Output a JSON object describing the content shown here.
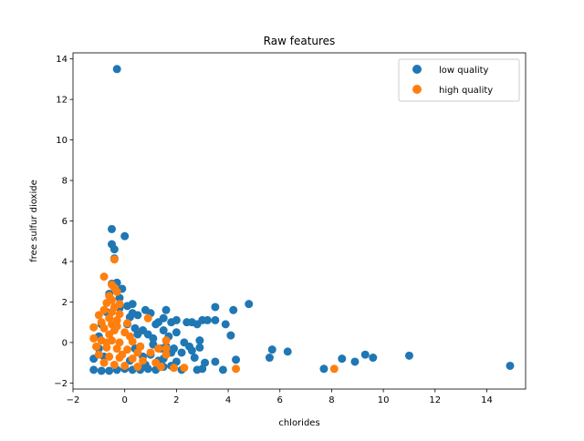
{
  "chart_data": {
    "type": "scatter",
    "title": "Raw features",
    "xlabel": "chlorides",
    "ylabel": "free sulfur dioxide",
    "xlim": [
      -2,
      15.5
    ],
    "ylim": [
      -2.3,
      14.3
    ],
    "xticks": [
      -2,
      0,
      2,
      4,
      6,
      8,
      10,
      12,
      14
    ],
    "yticks": [
      -2,
      0,
      2,
      4,
      6,
      8,
      10,
      12,
      14
    ],
    "xtick_labels": [
      "−2",
      "0",
      "2",
      "4",
      "6",
      "8",
      "10",
      "12",
      "14"
    ],
    "ytick_labels": [
      "−2",
      "0",
      "2",
      "4",
      "6",
      "8",
      "10",
      "12",
      "14"
    ],
    "grid": false,
    "legend_position": "top-right",
    "series": [
      {
        "name": "low quality",
        "color": "#1f77b4",
        "points": [
          [
            -0.3,
            13.5
          ],
          [
            -0.5,
            5.6
          ],
          [
            0.0,
            5.25
          ],
          [
            -0.5,
            4.85
          ],
          [
            -0.4,
            4.6
          ],
          [
            -0.4,
            4.15
          ],
          [
            -0.5,
            2.9
          ],
          [
            -0.3,
            2.95
          ],
          [
            -0.1,
            2.65
          ],
          [
            -0.6,
            2.4
          ],
          [
            0.3,
            1.9
          ],
          [
            0.1,
            1.8
          ],
          [
            -0.2,
            1.7
          ],
          [
            1.6,
            1.6
          ],
          [
            0.8,
            1.6
          ],
          [
            1.0,
            1.45
          ],
          [
            0.5,
            1.35
          ],
          [
            0.2,
            1.25
          ],
          [
            1.3,
            1.0
          ],
          [
            1.8,
            1.0
          ],
          [
            2.0,
            1.1
          ],
          [
            2.6,
            1.0
          ],
          [
            2.8,
            0.9
          ],
          [
            3.0,
            1.1
          ],
          [
            3.2,
            1.1
          ],
          [
            3.5,
            1.1
          ],
          [
            3.9,
            0.9
          ],
          [
            3.5,
            1.75
          ],
          [
            4.2,
            1.6
          ],
          [
            4.8,
            1.9
          ],
          [
            1.5,
            0.6
          ],
          [
            0.7,
            0.6
          ],
          [
            -0.9,
            0.9
          ],
          [
            0.1,
            0.9
          ],
          [
            4.1,
            0.35
          ],
          [
            2.9,
            0.1
          ],
          [
            2.9,
            -0.25
          ],
          [
            1.7,
            0.3
          ],
          [
            1.1,
            0.2
          ],
          [
            0.5,
            0.4
          ],
          [
            2.2,
            -0.5
          ],
          [
            2.5,
            -0.2
          ],
          [
            2.7,
            -0.75
          ],
          [
            3.5,
            -0.95
          ],
          [
            4.3,
            -0.85
          ],
          [
            5.7,
            -0.35
          ],
          [
            6.3,
            -0.45
          ],
          [
            5.6,
            -0.75
          ],
          [
            7.7,
            -1.3
          ],
          [
            8.4,
            -0.8
          ],
          [
            8.9,
            -0.95
          ],
          [
            9.3,
            -0.6
          ],
          [
            9.6,
            -0.75
          ],
          [
            11.0,
            -0.65
          ],
          [
            14.9,
            -1.15
          ],
          [
            -1.2,
            -0.8
          ],
          [
            -1.2,
            -1.35
          ],
          [
            -0.9,
            -1.4
          ],
          [
            -0.6,
            -1.4
          ],
          [
            -0.3,
            -1.35
          ],
          [
            0.0,
            -1.3
          ],
          [
            0.3,
            -1.35
          ],
          [
            0.6,
            -1.35
          ],
          [
            0.9,
            -1.3
          ],
          [
            1.2,
            -1.35
          ],
          [
            1.5,
            -1.2
          ],
          [
            1.8,
            -1.15
          ],
          [
            2.2,
            -1.35
          ],
          [
            2.8,
            -1.35
          ],
          [
            3.0,
            -1.3
          ],
          [
            3.8,
            -1.35
          ],
          [
            1.4,
            -0.3
          ],
          [
            1.0,
            -0.6
          ],
          [
            0.6,
            -0.2
          ],
          [
            1.5,
            -0.8
          ],
          [
            1.3,
            -0.9
          ],
          [
            2.0,
            -0.95
          ],
          [
            1.9,
            -0.3
          ],
          [
            2.3,
            0.0
          ],
          [
            0.9,
            0.4
          ],
          [
            0.4,
            0.7
          ],
          [
            -1.0,
            0.3
          ],
          [
            -1.0,
            -0.3
          ],
          [
            -0.8,
            -0.7
          ],
          [
            0.2,
            -0.9
          ],
          [
            0.7,
            -0.7
          ],
          [
            1.1,
            -0.1
          ],
          [
            1.6,
            -0.2
          ],
          [
            2.6,
            -0.4
          ],
          [
            0.8,
            -1.1
          ],
          [
            1.2,
            0.9
          ],
          [
            1.5,
            1.2
          ],
          [
            0.3,
            1.45
          ],
          [
            -0.7,
            1.5
          ],
          [
            -0.2,
            2.2
          ],
          [
            2.4,
            1.0
          ],
          [
            3.1,
            -1.0
          ],
          [
            2.0,
            0.5
          ],
          [
            1.8,
            -0.5
          ],
          [
            0.4,
            -0.3
          ]
        ]
      },
      {
        "name": "high quality",
        "color": "#ff7f0e",
        "points": [
          [
            -0.4,
            4.1
          ],
          [
            -0.8,
            3.25
          ],
          [
            -0.5,
            2.85
          ],
          [
            -0.4,
            2.7
          ],
          [
            -0.3,
            2.5
          ],
          [
            -0.6,
            2.3
          ],
          [
            -0.5,
            2.1
          ],
          [
            -0.7,
            1.95
          ],
          [
            -0.2,
            1.9
          ],
          [
            -0.4,
            1.75
          ],
          [
            -0.8,
            1.6
          ],
          [
            -0.5,
            1.5
          ],
          [
            -1.0,
            1.35
          ],
          [
            -0.2,
            1.4
          ],
          [
            0.9,
            1.2
          ],
          [
            -0.6,
            1.2
          ],
          [
            -0.3,
            1.1
          ],
          [
            -0.9,
            1.0
          ],
          [
            -0.5,
            0.9
          ],
          [
            0.1,
            0.95
          ],
          [
            -1.2,
            0.75
          ],
          [
            -0.8,
            0.7
          ],
          [
            -0.4,
            0.6
          ],
          [
            0.0,
            0.5
          ],
          [
            -0.6,
            0.4
          ],
          [
            -1.2,
            0.2
          ],
          [
            -0.9,
            0.1
          ],
          [
            -0.5,
            0.1
          ],
          [
            -0.2,
            0.0
          ],
          [
            0.3,
            0.05
          ],
          [
            -1.1,
            -0.2
          ],
          [
            -0.7,
            -0.25
          ],
          [
            -0.3,
            -0.3
          ],
          [
            0.1,
            -0.35
          ],
          [
            0.6,
            -0.2
          ],
          [
            1.0,
            -0.5
          ],
          [
            1.3,
            -0.3
          ],
          [
            1.6,
            -0.3
          ],
          [
            1.6,
            0.1
          ],
          [
            1.6,
            -0.6
          ],
          [
            -1.0,
            -0.6
          ],
          [
            -0.6,
            -0.7
          ],
          [
            -0.2,
            -0.75
          ],
          [
            0.3,
            -0.8
          ],
          [
            0.7,
            -0.9
          ],
          [
            1.2,
            -1.0
          ],
          [
            1.4,
            -1.2
          ],
          [
            1.9,
            -1.25
          ],
          [
            2.3,
            -1.25
          ],
          [
            4.3,
            -1.3
          ],
          [
            8.1,
            -1.3
          ],
          [
            -0.8,
            -1.0
          ],
          [
            -0.4,
            -1.1
          ],
          [
            0.0,
            -1.15
          ],
          [
            0.5,
            -1.2
          ],
          [
            -0.7,
            0.0
          ],
          [
            -0.3,
            0.8
          ],
          [
            0.2,
            0.3
          ],
          [
            0.5,
            -0.5
          ],
          [
            -0.1,
            -0.6
          ]
        ]
      }
    ]
  }
}
